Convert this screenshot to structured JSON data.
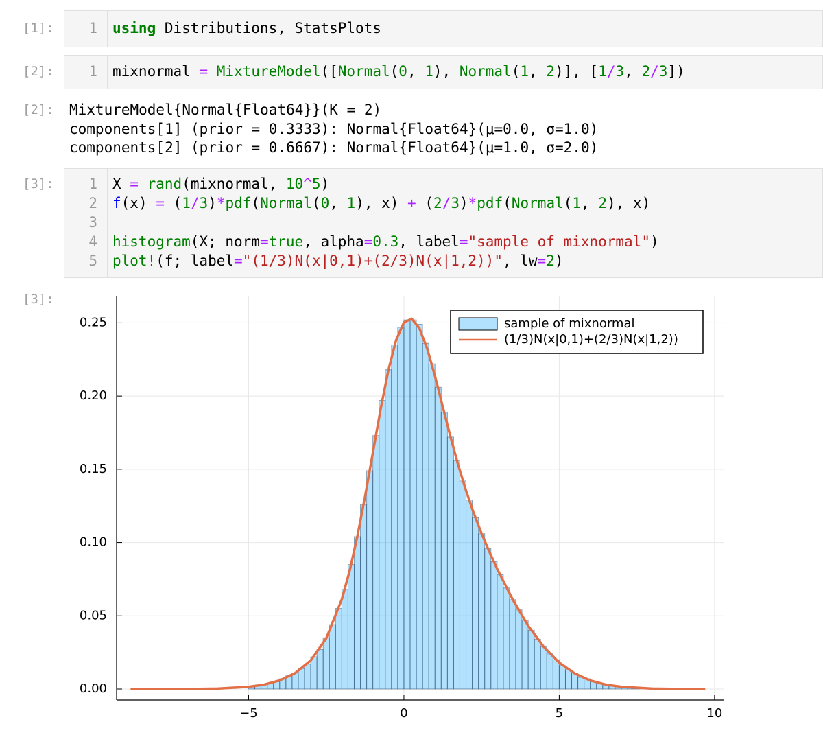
{
  "notebook": {
    "cell_1": {
      "prompt": "[1]:",
      "lines": [
        {
          "number": 1,
          "code": [
            {
              "text": "using",
              "color": "#008000",
              "bold": true
            },
            {
              "text": " Distributions, StatsPlots"
            }
          ]
        }
      ]
    },
    "cell_2": {
      "prompt": "[2]:",
      "lines": [
        {
          "number": 1,
          "code": [
            {
              "text": "mixnormal "
            },
            {
              "text": "=",
              "color": "#aa22ff"
            },
            {
              "text": " "
            },
            {
              "text": "MixtureModel",
              "color": "#008000"
            },
            {
              "text": "(["
            },
            {
              "text": "Normal",
              "color": "#008000"
            },
            {
              "text": "("
            },
            {
              "text": "0",
              "color": "#008000"
            },
            {
              "text": ", "
            },
            {
              "text": "1",
              "color": "#008000"
            },
            {
              "text": "), "
            },
            {
              "text": "Normal",
              "color": "#008000"
            },
            {
              "text": "("
            },
            {
              "text": "1",
              "color": "#008000"
            },
            {
              "text": ", "
            },
            {
              "text": "2",
              "color": "#008000"
            },
            {
              "text": ")], ["
            },
            {
              "text": "1",
              "color": "#008000"
            },
            {
              "text": "/",
              "color": "#aa22ff"
            },
            {
              "text": "3",
              "color": "#008000"
            },
            {
              "text": ", "
            },
            {
              "text": "2",
              "color": "#008000"
            },
            {
              "text": "/",
              "color": "#aa22ff"
            },
            {
              "text": "3",
              "color": "#008000"
            },
            {
              "text": "])"
            }
          ]
        }
      ]
    },
    "output_2": {
      "prompt": "[2]:",
      "lines": [
        "MixtureModel{Normal{Float64}}(K = 2)",
        "components[1] (prior = 0.3333): Normal{Float64}(μ=0.0, σ=1.0)",
        "components[2] (prior = 0.6667): Normal{Float64}(μ=1.0, σ=2.0)"
      ]
    },
    "cell_3": {
      "prompt": "[3]:",
      "lines": [
        {
          "number": 1,
          "code": [
            {
              "text": "X "
            },
            {
              "text": "=",
              "color": "#aa22ff"
            },
            {
              "text": " "
            },
            {
              "text": "rand",
              "color": "#008000"
            },
            {
              "text": "(mixnormal, "
            },
            {
              "text": "10",
              "color": "#008000"
            },
            {
              "text": "^",
              "color": "#aa22ff"
            },
            {
              "text": "5",
              "color": "#008000"
            },
            {
              "text": ")"
            }
          ]
        },
        {
          "number": 2,
          "code": [
            {
              "text": "f",
              "color": "#0000ff"
            },
            {
              "text": "(x) "
            },
            {
              "text": "=",
              "color": "#aa22ff"
            },
            {
              "text": " ("
            },
            {
              "text": "1",
              "color": "#008000"
            },
            {
              "text": "/",
              "color": "#aa22ff"
            },
            {
              "text": "3",
              "color": "#008000"
            },
            {
              "text": ")"
            },
            {
              "text": "*",
              "color": "#aa22ff"
            },
            {
              "text": "pdf",
              "color": "#008000"
            },
            {
              "text": "("
            },
            {
              "text": "Normal",
              "color": "#008000"
            },
            {
              "text": "("
            },
            {
              "text": "0",
              "color": "#008000"
            },
            {
              "text": ", "
            },
            {
              "text": "1",
              "color": "#008000"
            },
            {
              "text": "), x) "
            },
            {
              "text": "+",
              "color": "#aa22ff"
            },
            {
              "text": " ("
            },
            {
              "text": "2",
              "color": "#008000"
            },
            {
              "text": "/",
              "color": "#aa22ff"
            },
            {
              "text": "3",
              "color": "#008000"
            },
            {
              "text": ")"
            },
            {
              "text": "*",
              "color": "#aa22ff"
            },
            {
              "text": "pdf",
              "color": "#008000"
            },
            {
              "text": "("
            },
            {
              "text": "Normal",
              "color": "#008000"
            },
            {
              "text": "("
            },
            {
              "text": "1",
              "color": "#008000"
            },
            {
              "text": ", "
            },
            {
              "text": "2",
              "color": "#008000"
            },
            {
              "text": "), x)"
            }
          ]
        },
        {
          "number": 3,
          "code": []
        },
        {
          "number": 4,
          "code": [
            {
              "text": "histogram",
              "color": "#008000"
            },
            {
              "text": "(X; norm"
            },
            {
              "text": "=",
              "color": "#aa22ff"
            },
            {
              "text": "true",
              "color": "#008000"
            },
            {
              "text": ", alpha"
            },
            {
              "text": "=",
              "color": "#aa22ff"
            },
            {
              "text": "0.3",
              "color": "#008000"
            },
            {
              "text": ", label"
            },
            {
              "text": "=",
              "color": "#aa22ff"
            },
            {
              "text": "\"sample of mixnormal\"",
              "color": "#ba2121"
            },
            {
              "text": ")"
            }
          ]
        },
        {
          "number": 5,
          "code": [
            {
              "text": "plot!",
              "color": "#008000"
            },
            {
              "text": "(f; label"
            },
            {
              "text": "=",
              "color": "#aa22ff"
            },
            {
              "text": "\"(1/3)N(x|0,1)+(2/3)N(x|1,2))\"",
              "color": "#ba2121"
            },
            {
              "text": ", lw"
            },
            {
              "text": "=",
              "color": "#aa22ff"
            },
            {
              "text": "2",
              "color": "#008000"
            },
            {
              "text": ")"
            }
          ]
        }
      ]
    },
    "output_3": {
      "prompt": "[3]:"
    }
  },
  "chart_data": {
    "type": "histogram",
    "xlim": [
      -9.25,
      10.29
    ],
    "ylim": [
      -0.0075,
      0.268
    ],
    "xticks": [
      {
        "value": -5,
        "label": "−5"
      },
      0,
      5,
      10
    ],
    "yticks": [
      {
        "value": 0,
        "label": "0.00"
      },
      {
        "value": 0.05,
        "label": "0.05"
      },
      {
        "value": 0.1,
        "label": "0.10"
      },
      {
        "value": 0.15,
        "label": "0.15"
      },
      {
        "value": 0.2,
        "label": "0.20"
      },
      {
        "value": 0.25,
        "label": "0.25"
      }
    ],
    "grid": true,
    "legend": "top-right",
    "series": [
      {
        "type": "histogram",
        "name": "sample of mixnormal",
        "color": "#009afa",
        "alpha": 0.3,
        "bins": [
          -5,
          -4.8,
          -4.6,
          -4.4,
          -4.2,
          -4,
          -3.8,
          -3.6,
          -3.4,
          -3.2,
          -3,
          -2.8,
          -2.6,
          -2.4,
          -2.2,
          -2,
          -1.8,
          -1.6,
          -1.4,
          -1.2,
          -1,
          -0.8,
          -0.6,
          -0.4,
          -0.2,
          0,
          0.2,
          0.4,
          0.6,
          0.8,
          1,
          1.2,
          1.4,
          1.6,
          1.8,
          2,
          2.2,
          2.4,
          2.6,
          2.8,
          3,
          3.2,
          3.4,
          3.6,
          3.8,
          4,
          4.2,
          4.4,
          4.6,
          4.8,
          5,
          5.2,
          5.4,
          5.6,
          5.8,
          6,
          6.2,
          6.4,
          6.6,
          6.8,
          7,
          7.2,
          7.4,
          7.6
        ],
        "values": [
          0.002,
          0.002,
          0.003,
          0.004,
          0.005,
          0.007,
          0.009,
          0.011,
          0.014,
          0.017,
          0.022,
          0.027,
          0.035,
          0.044,
          0.055,
          0.068,
          0.085,
          0.104,
          0.126,
          0.149,
          0.173,
          0.197,
          0.218,
          0.235,
          0.247,
          0.252,
          0.252,
          0.249,
          0.236,
          0.222,
          0.206,
          0.189,
          0.172,
          0.156,
          0.142,
          0.129,
          0.117,
          0.106,
          0.096,
          0.087,
          0.078,
          0.069,
          0.061,
          0.054,
          0.047,
          0.04,
          0.034,
          0.029,
          0.024,
          0.02,
          0.016,
          0.013,
          0.011,
          0.008,
          0.007,
          0.005,
          0.004,
          0.003,
          0.002,
          0.002,
          0.001,
          0.001,
          0.001
        ]
      },
      {
        "type": "line",
        "name": "(1/3)N(x|0,1)+(2/3)N(x|1,2))",
        "color": "#e26f46",
        "x": [
          -8.8,
          -8,
          -7,
          -6,
          -5,
          -4.5,
          -4,
          -3.5,
          -3,
          -2.5,
          -2,
          -1.75,
          -1.5,
          -1.25,
          -1,
          -0.75,
          -0.5,
          -0.25,
          0,
          0.25,
          0.5,
          0.75,
          1,
          1.25,
          1.5,
          1.75,
          2,
          2.25,
          2.5,
          2.75,
          3,
          3.5,
          4,
          4.5,
          5,
          5.5,
          6,
          6.5,
          7,
          8,
          9,
          9.7
        ],
        "values": [
          0,
          0,
          0,
          0.0003,
          0.0015,
          0.003,
          0.0059,
          0.0109,
          0.0195,
          0.0346,
          0.0612,
          0.0804,
          0.1041,
          0.1315,
          0.1613,
          0.1911,
          0.2177,
          0.2383,
          0.2503,
          0.2528,
          0.2462,
          0.2323,
          0.2136,
          0.1928,
          0.1721,
          0.1527,
          0.1354,
          0.12,
          0.1062,
          0.0937,
          0.0821,
          0.0612,
          0.0432,
          0.0288,
          0.018,
          0.0106,
          0.0058,
          0.003,
          0.0015,
          0.0003,
          0,
          0
        ]
      }
    ]
  }
}
